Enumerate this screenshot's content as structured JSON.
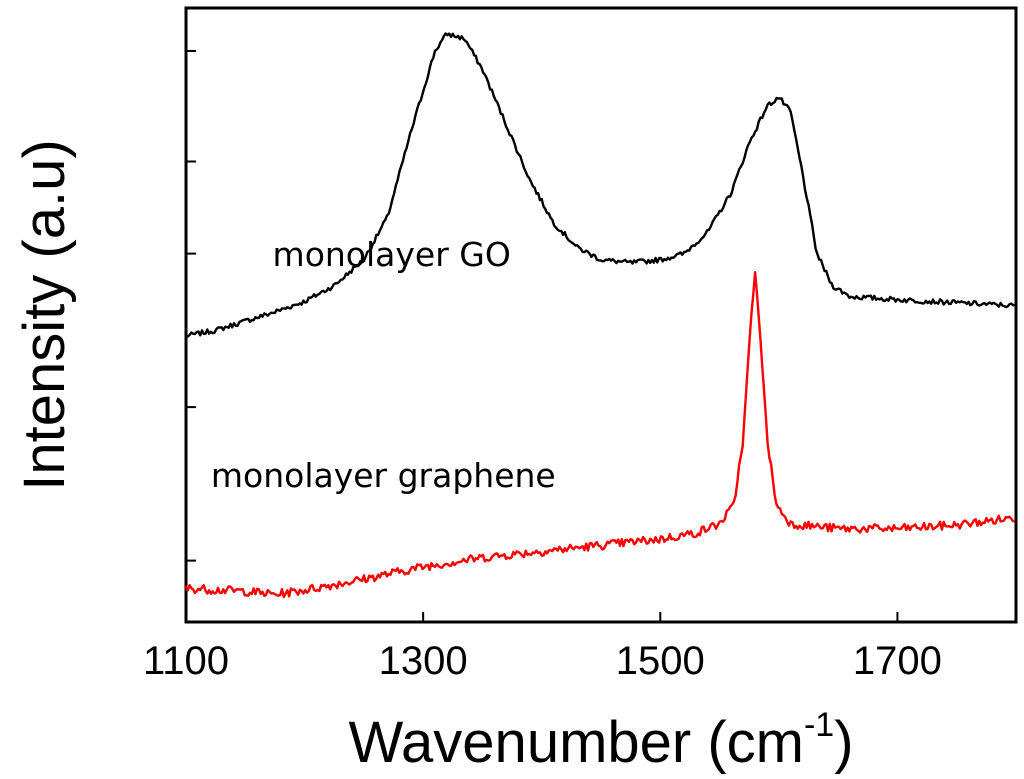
{
  "chart_data": {
    "type": "line",
    "title": "",
    "xlabel": "Wavenumber (cm",
    "xlabel_superscript": "-1",
    "xlabel_close": ")",
    "ylabel": "Intensity (a.u)",
    "xlim": [
      1100,
      1800
    ],
    "ylim": [
      0,
      1
    ],
    "x_ticks": [
      1100,
      1300,
      1500,
      1700
    ],
    "x_tick_labels": [
      "1100",
      "1300",
      "1500",
      "1700"
    ],
    "y_tick_values": [
      0.1,
      0.35,
      0.6,
      0.75,
      0.93
    ],
    "grid": false,
    "series": [
      {
        "name": "monolayer GO",
        "color": "#000000",
        "noise": 0.004,
        "points": [
          [
            1100,
            0.466
          ],
          [
            1125,
            0.475
          ],
          [
            1150,
            0.49
          ],
          [
            1175,
            0.505
          ],
          [
            1200,
            0.522
          ],
          [
            1225,
            0.548
          ],
          [
            1250,
            0.59
          ],
          [
            1270,
            0.66
          ],
          [
            1290,
            0.8
          ],
          [
            1310,
            0.93
          ],
          [
            1320,
            0.958
          ],
          [
            1335,
            0.95
          ],
          [
            1350,
            0.9
          ],
          [
            1370,
            0.81
          ],
          [
            1390,
            0.72
          ],
          [
            1410,
            0.65
          ],
          [
            1430,
            0.61
          ],
          [
            1450,
            0.59
          ],
          [
            1475,
            0.585
          ],
          [
            1500,
            0.59
          ],
          [
            1520,
            0.6
          ],
          [
            1540,
            0.635
          ],
          [
            1560,
            0.7
          ],
          [
            1575,
            0.78
          ],
          [
            1590,
            0.84
          ],
          [
            1600,
            0.855
          ],
          [
            1610,
            0.83
          ],
          [
            1620,
            0.73
          ],
          [
            1632,
            0.6
          ],
          [
            1645,
            0.548
          ],
          [
            1660,
            0.53
          ],
          [
            1700,
            0.525
          ],
          [
            1750,
            0.52
          ],
          [
            1800,
            0.515
          ]
        ]
      },
      {
        "name": "monolayer graphene",
        "color": "#ff0000",
        "noise": 0.007,
        "points": [
          [
            1100,
            0.055
          ],
          [
            1150,
            0.05
          ],
          [
            1175,
            0.045
          ],
          [
            1200,
            0.052
          ],
          [
            1250,
            0.07
          ],
          [
            1300,
            0.09
          ],
          [
            1350,
            0.105
          ],
          [
            1400,
            0.115
          ],
          [
            1450,
            0.125
          ],
          [
            1500,
            0.135
          ],
          [
            1530,
            0.145
          ],
          [
            1550,
            0.16
          ],
          [
            1562,
            0.19
          ],
          [
            1570,
            0.3
          ],
          [
            1576,
            0.48
          ],
          [
            1580,
            0.565
          ],
          [
            1584,
            0.48
          ],
          [
            1590,
            0.3
          ],
          [
            1598,
            0.19
          ],
          [
            1610,
            0.16
          ],
          [
            1650,
            0.152
          ],
          [
            1700,
            0.152
          ],
          [
            1750,
            0.158
          ],
          [
            1800,
            0.17
          ]
        ]
      }
    ],
    "annotations": [
      {
        "text": "monolayer GO",
        "x": 1173,
        "y": 0.58
      },
      {
        "text": "monolayer graphene",
        "x": 1121,
        "y": 0.22
      }
    ]
  }
}
